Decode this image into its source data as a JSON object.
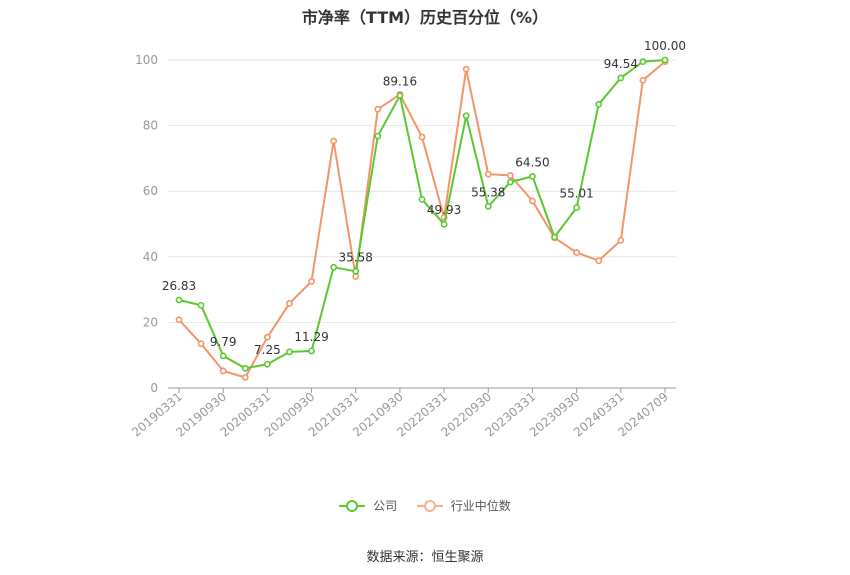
{
  "chart_data": {
    "type": "line",
    "title": "市净率（TTM）历史百分位（%）",
    "ylim": [
      0,
      100
    ],
    "yticks": [
      0,
      20,
      40,
      60,
      80,
      100
    ],
    "x": [
      "20190331",
      "20190630",
      "20190930",
      "20191231",
      "20200331",
      "20200630",
      "20200930",
      "20201231",
      "20210331",
      "20210630",
      "20210930",
      "20211231",
      "20220331",
      "20220630",
      "20220930",
      "20221231",
      "20230331",
      "20230630",
      "20230930",
      "20231231",
      "20240331",
      "20240630",
      "20240709"
    ],
    "xtick_labels": [
      "20190331",
      "20190930",
      "20200331",
      "20200930",
      "20210331",
      "20210930",
      "20220331",
      "20220930",
      "20230331",
      "20230930",
      "20240331",
      "20240709"
    ],
    "series": [
      {
        "name": "公司",
        "color": "#5ac831",
        "values": [
          26.83,
          25.2,
          9.79,
          6.0,
          7.25,
          11.0,
          11.29,
          36.8,
          35.58,
          76.8,
          89.16,
          57.5,
          49.93,
          83.0,
          55.38,
          62.8,
          64.5,
          46.0,
          55.01,
          86.5,
          94.54,
          99.5,
          100.0
        ],
        "data_labels": [
          {
            "index": 0,
            "text": "26.83"
          },
          {
            "index": 2,
            "text": "9.79"
          },
          {
            "index": 4,
            "text": "7.25"
          },
          {
            "index": 6,
            "text": "11.29"
          },
          {
            "index": 8,
            "text": "35.58"
          },
          {
            "index": 10,
            "text": "89.16"
          },
          {
            "index": 12,
            "text": "49.93"
          },
          {
            "index": 14,
            "text": "55.38"
          },
          {
            "index": 16,
            "text": "64.50"
          },
          {
            "index": 18,
            "text": "55.01"
          },
          {
            "index": 20,
            "text": "94.54"
          },
          {
            "index": 22,
            "text": "100.00"
          }
        ]
      },
      {
        "name": "行业中位数",
        "color": "#f59467",
        "values": [
          20.8,
          13.5,
          5.2,
          3.2,
          15.5,
          25.8,
          32.5,
          75.3,
          34.0,
          85.0,
          89.5,
          76.5,
          52.0,
          97.2,
          65.2,
          64.8,
          57.0,
          45.8,
          41.3,
          38.8,
          45.0,
          93.8,
          99.5
        ]
      }
    ]
  },
  "legend": {
    "items": [
      {
        "label": "公司",
        "color": "#5ac831"
      },
      {
        "label": "行业中位数",
        "color": "#f9b091"
      }
    ]
  },
  "source_note": "数据来源：恒生聚源"
}
